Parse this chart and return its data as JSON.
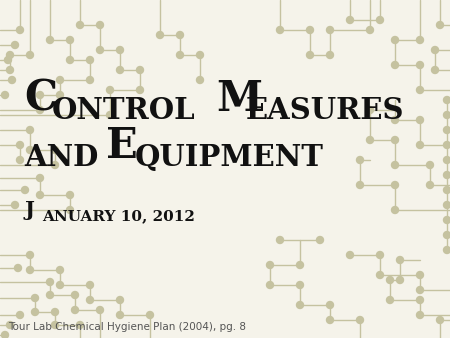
{
  "background_color": "#f5f3ea",
  "circuit_color": "#c5c2a0",
  "title1_big": "C",
  "title1_small": "ONTROL ",
  "title1_bigM": "M",
  "title1_smallM": "EASURES",
  "title2_small_and": "AND ",
  "title2_bigE": "E",
  "title2_smallE": "QUIPMENT",
  "date_bigJ": "J",
  "date_small": "ANUARY 10, 2012",
  "footer_text": "Tour Lab Chemical Hygiene Plan (2004), pg. 8",
  "text_color": "#111111",
  "footer_color": "#555555",
  "lw": 1.0
}
